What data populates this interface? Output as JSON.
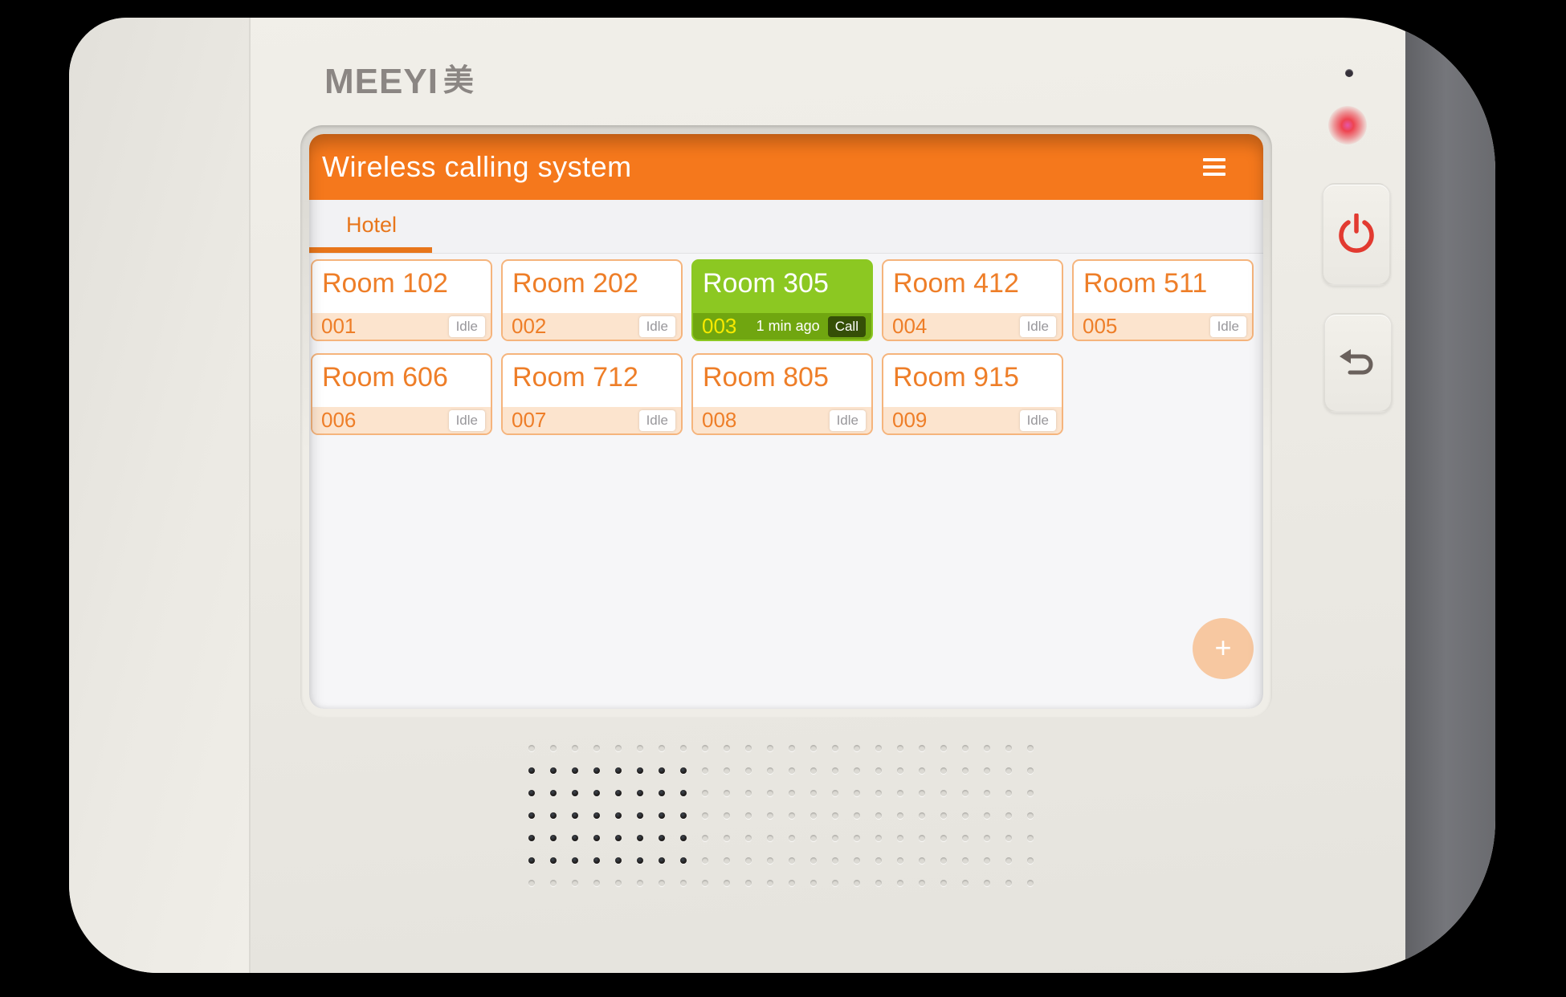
{
  "device": {
    "brand": {
      "latin": "MEEYI",
      "cjk": "美"
    },
    "speaker": {
      "cols": 24,
      "rows": 7,
      "dark_cols": 8,
      "dark_row_start": 1,
      "dark_row_end": 5
    }
  },
  "app": {
    "header": {
      "title": "Wireless calling system"
    },
    "tabs": [
      {
        "label": "Hotel",
        "active": true
      }
    ],
    "rooms": [
      {
        "name": "Room 102",
        "id": "001",
        "state": "idle",
        "badge": "Idle",
        "time": ""
      },
      {
        "name": "Room 202",
        "id": "002",
        "state": "idle",
        "badge": "Idle",
        "time": ""
      },
      {
        "name": "Room 305",
        "id": "003",
        "state": "call",
        "badge": "Call",
        "time": "1 min ago"
      },
      {
        "name": "Room 412",
        "id": "004",
        "state": "idle",
        "badge": "Idle",
        "time": ""
      },
      {
        "name": "Room 511",
        "id": "005",
        "state": "idle",
        "badge": "Idle",
        "time": ""
      },
      {
        "name": "Room 606",
        "id": "006",
        "state": "idle",
        "badge": "Idle",
        "time": ""
      },
      {
        "name": "Room 712",
        "id": "007",
        "state": "idle",
        "badge": "Idle",
        "time": ""
      },
      {
        "name": "Room 805",
        "id": "008",
        "state": "idle",
        "badge": "Idle",
        "time": ""
      },
      {
        "name": "Room 915",
        "id": "009",
        "state": "idle",
        "badge": "Idle",
        "time": ""
      }
    ],
    "fab_label": "+"
  },
  "icons": {
    "menu": "hamburger-menu",
    "power": "power",
    "back": "back-arrow",
    "add": "plus",
    "led": "status-led",
    "mic": "microphone-hole"
  },
  "colors": {
    "accent_orange": "#F5781C",
    "tab_orange": "#E8761B",
    "room_text_orange": "#EE7E28",
    "idle_strip": "#FCE4CE",
    "card_border": "#F5B47C",
    "call_green": "#8CC822",
    "call_green_dark": "#70A610",
    "call_id_yellow": "#F8EA00",
    "fab_peach": "#F7C8A1",
    "power_icon_red": "#E23A30",
    "device_gray_band": "#6E6F73"
  }
}
